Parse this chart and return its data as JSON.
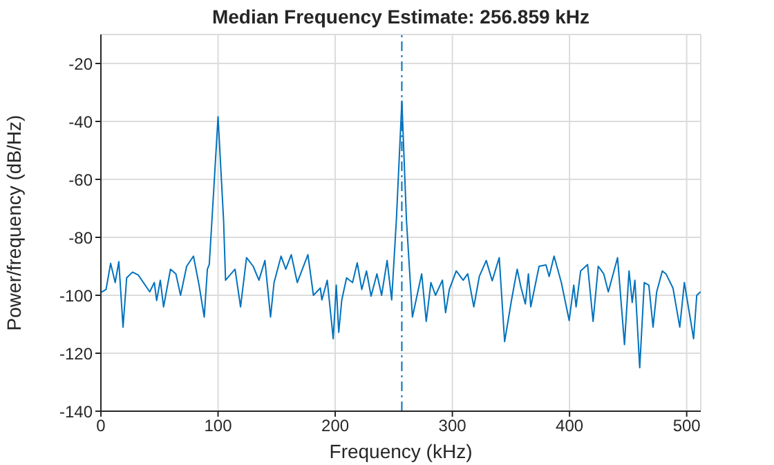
{
  "chart_data": {
    "type": "line",
    "title": "Median Frequency Estimate: 256.859 kHz",
    "xlabel": "Frequency (kHz)",
    "ylabel": "Power/frequency (dB/Hz)",
    "x": [
      0,
      4.4,
      8.3,
      12.2,
      15.3,
      18.9,
      22,
      27,
      31.9,
      41.7,
      45.6,
      47.6,
      50.7,
      53.5,
      59.4,
      64,
      68,
      73.2,
      79,
      83.8,
      88.2,
      90.9,
      92.5,
      94.8,
      100,
      104.7,
      106.4,
      114.5,
      119.2,
      124.3,
      130,
      134.9,
      140,
      144.8,
      147.8,
      153.8,
      157.8,
      162.5,
      167.6,
      176.7,
      181.4,
      187.3,
      188.6,
      193.2,
      198.3,
      200.9,
      203,
      205.6,
      209.7,
      214.8,
      218.8,
      222.7,
      226.7,
      230.6,
      235.6,
      239.6,
      244.3,
      248.2,
      252.2,
      256.9,
      260.8,
      265.9,
      273.8,
      277.7,
      281.7,
      285.6,
      291.5,
      294.2,
      297.4,
      303.3,
      309.2,
      313.1,
      318.3,
      323,
      328.9,
      334,
      340,
      344.6,
      350.5,
      355.3,
      358.7,
      362.3,
      364.9,
      366.9,
      374,
      379.9,
      382.6,
      386.8,
      393,
      399.7,
      403.6,
      405.6,
      409.5,
      415.4,
      420.1,
      424.5,
      429.2,
      433.1,
      441,
      446.9,
      450.8,
      453.5,
      455.8,
      459.9,
      463.8,
      467.7,
      471.3,
      474.4,
      479.2,
      482.3,
      488.3,
      494.1,
      498,
      505.9,
      508.6,
      511.8
    ],
    "series": [
      {
        "color": "#0072bd",
        "values": [
          -99,
          -98,
          -89,
          -95.6,
          -88.4,
          -111,
          -94,
          -92,
          -93,
          -98.8,
          -95.6,
          -101.8,
          -94.8,
          -104,
          -91,
          -92.6,
          -100,
          -90,
          -86.5,
          -96.5,
          -107.5,
          -91,
          -89.4,
          -74,
          -38.4,
          -74,
          -94.8,
          -91,
          -104,
          -87,
          -90,
          -94.8,
          -88,
          -107.5,
          -95.6,
          -86.5,
          -91,
          -86,
          -95.6,
          -86,
          -100,
          -97.5,
          -101.6,
          -94.8,
          -115,
          -96.5,
          -112.8,
          -101.6,
          -94,
          -95.6,
          -88.8,
          -98,
          -91.6,
          -100.3,
          -92.6,
          -100,
          -88,
          -101.6,
          -74,
          -33,
          -74,
          -107.5,
          -92.6,
          -109,
          -95.6,
          -100,
          -94.8,
          -106,
          -98,
          -91.6,
          -94.8,
          -92.6,
          -104,
          -93.5,
          -88,
          -95,
          -87,
          -116,
          -101.6,
          -91,
          -97.5,
          -103,
          -92.6,
          -104,
          -90,
          -89.5,
          -93.5,
          -86.5,
          -95.6,
          -108.7,
          -96.5,
          -104,
          -91.6,
          -89.4,
          -109,
          -90,
          -92.6,
          -98.8,
          -87,
          -117,
          -91.6,
          -102.5,
          -94.8,
          -125,
          -95.6,
          -96.5,
          -111,
          -98.8,
          -91.6,
          -92.6,
          -97.5,
          -111,
          -95.6,
          -115,
          -100,
          -98.8
        ]
      }
    ],
    "xlim": [
      0,
      512
    ],
    "xticks": [
      0,
      100,
      200,
      300,
      400,
      500
    ],
    "ylim": [
      -140,
      -10
    ],
    "yticks": [
      -140,
      -120,
      -100,
      -80,
      -60,
      -40,
      -20
    ],
    "grid": true,
    "line_style": "solid",
    "marker": "none",
    "ref_lines": [
      {
        "axis": "x",
        "value": 256.859,
        "color": "#0072bd",
        "line_style": "dashed"
      }
    ]
  }
}
